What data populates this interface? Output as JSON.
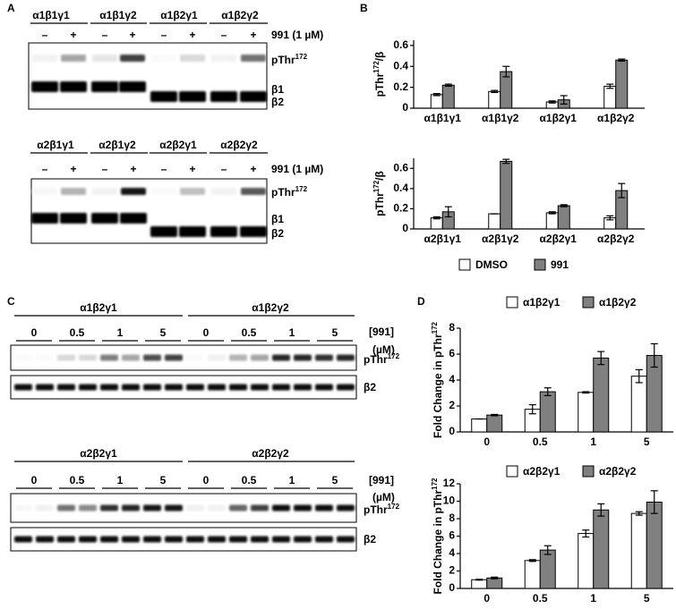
{
  "panel_labels": [
    "A",
    "B",
    "C",
    "D"
  ],
  "blot_a": [
    {
      "groups": [
        "α1β1γ1",
        "α1β1γ2",
        "α1β2γ1",
        "α1β2γ2"
      ],
      "signs": [
        "–",
        "+",
        "–",
        "+",
        "–",
        "+",
        "–",
        "+"
      ],
      "treatment": "991 (1 µM)",
      "bands": [
        [
          "pThr",
          "172"
        ],
        "β1",
        "β2"
      ]
    },
    {
      "groups": [
        "α2β1γ1",
        "α2β1γ2",
        "α2β2γ1",
        "α2β2γ2"
      ],
      "signs": [
        "–",
        "+",
        "–",
        "+",
        "–",
        "+",
        "–",
        "+"
      ],
      "treatment": "991 (1 µM)",
      "bands": [
        [
          "pThr",
          "172"
        ],
        "β1",
        "β2"
      ]
    }
  ],
  "blot_c": [
    {
      "groups": [
        "α1β2γ1",
        "α1β2γ2"
      ],
      "doses": [
        "0",
        "0.5",
        "1",
        "5",
        "0",
        "0.5",
        "1",
        "5"
      ],
      "treatment": [
        "[991]",
        "(µM)"
      ],
      "bands": [
        [
          "pThr",
          "172"
        ],
        "β2"
      ]
    },
    {
      "groups": [
        "α2β2γ1",
        "α2β2γ2"
      ],
      "doses": [
        "0",
        "0.5",
        "1",
        "5",
        "0",
        "0.5",
        "1",
        "5"
      ],
      "treatment": [
        "[991]",
        "(µM)"
      ],
      "bands": [
        [
          "pThr",
          "172"
        ],
        "β2"
      ]
    }
  ],
  "chart_data": [
    {
      "type": "bar",
      "ylabel": [
        "pThr",
        "172",
        "/β"
      ],
      "categories": [
        "α1β1γ1",
        "α1β1γ2",
        "α1β2γ1",
        "α1β2γ2"
      ],
      "series": [
        {
          "color": "#ffffff",
          "values": [
            0.13,
            0.16,
            0.06,
            0.21
          ],
          "errors": [
            0.01,
            0.01,
            0.01,
            0.02
          ]
        },
        {
          "color": "#808080",
          "values": [
            0.22,
            0.35,
            0.08,
            0.46
          ],
          "errors": [
            0.01,
            0.05,
            0.04,
            0.01
          ]
        }
      ],
      "ylim": [
        0,
        0.65
      ],
      "yticks": [
        0,
        0.2,
        0.4,
        0.6
      ]
    },
    {
      "type": "bar",
      "ylabel": [
        "pThr",
        "172",
        "/β"
      ],
      "categories": [
        "α2β1γ1",
        "α2β1γ2",
        "α2β2γ1",
        "α2β2γ2"
      ],
      "series": [
        {
          "name": "DMSO",
          "color": "#ffffff",
          "values": [
            0.11,
            0.15,
            0.16,
            0.11
          ],
          "errors": [
            0.01,
            0,
            0.01,
            0.02
          ]
        },
        {
          "name": "991",
          "color": "#808080",
          "values": [
            0.17,
            0.67,
            0.23,
            0.38
          ],
          "errors": [
            0.05,
            0.02,
            0.01,
            0.07
          ]
        }
      ],
      "ylim": [
        0,
        0.7
      ],
      "yticks": [
        0,
        0.2,
        0.4,
        0.6
      ],
      "legend": "bottom"
    },
    {
      "type": "bar",
      "ylabel": [
        "Fold Change in pThr",
        "172"
      ],
      "categories": [
        "0",
        "0.5",
        "1",
        "5"
      ],
      "series": [
        {
          "name": "α1β2γ1",
          "color": "#ffffff",
          "values": [
            1.0,
            1.75,
            3.05,
            4.3
          ],
          "errors": [
            0,
            0.35,
            0.05,
            0.5
          ]
        },
        {
          "name": "α1β2γ2",
          "color": "#808080",
          "values": [
            1.3,
            3.1,
            5.7,
            5.9
          ],
          "errors": [
            0.05,
            0.3,
            0.5,
            0.9
          ]
        }
      ],
      "ylim": [
        0,
        8
      ],
      "yticks": [
        0,
        2,
        4,
        6,
        8
      ],
      "legend": "top"
    },
    {
      "type": "bar",
      "ylabel": [
        "Fold Change in pThr",
        "172"
      ],
      "categories": [
        "0",
        "0.5",
        "1",
        "5"
      ],
      "series": [
        {
          "name": "α2β2γ1",
          "color": "#ffffff",
          "values": [
            1.0,
            3.2,
            6.3,
            8.6
          ],
          "errors": [
            0.05,
            0.1,
            0.4,
            0.2
          ]
        },
        {
          "name": "α2β2γ2",
          "color": "#808080",
          "values": [
            1.2,
            4.4,
            9.0,
            9.9
          ],
          "errors": [
            0.1,
            0.5,
            0.7,
            1.3
          ]
        }
      ],
      "ylim": [
        0,
        12
      ],
      "yticks": [
        0,
        2,
        4,
        6,
        8,
        10,
        12
      ],
      "legend": "top"
    }
  ]
}
